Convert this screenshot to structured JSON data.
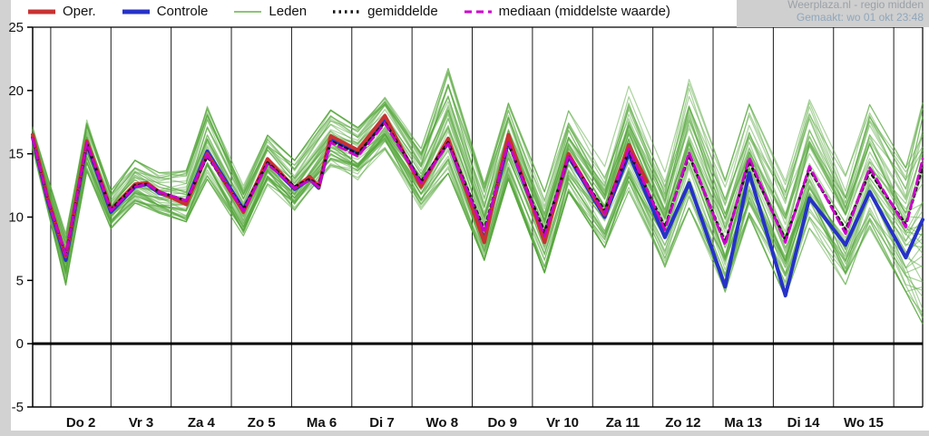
{
  "header": {
    "source": "Weerplaza.nl - regio midden",
    "generated": "Gemaakt: wo 01 okt 23:48"
  },
  "legend": {
    "items": [
      {
        "label": "Oper.",
        "color": "#c83232",
        "style": "solid",
        "sample_width": 5
      },
      {
        "label": "Controle",
        "color": "#2632c8",
        "style": "solid",
        "sample_width": 5
      },
      {
        "label": "Leden",
        "color": "#6ab04c",
        "style": "solid",
        "sample_width": 1.5
      },
      {
        "label": "gemiddelde",
        "color": "#141414",
        "style": "dotted",
        "sample_width": 3.5
      },
      {
        "label": "mediaan (middelste waarde)",
        "color": "#cc00cc",
        "style": "dashed",
        "sample_width": 3
      }
    ]
  },
  "chart_data": {
    "type": "line",
    "title": "",
    "xlabel": "",
    "ylabel": "",
    "x_domain": [
      1.7,
      16.48
    ],
    "ylim": [
      -5,
      25
    ],
    "yticks": [
      -5,
      0,
      5,
      10,
      15,
      20,
      25
    ],
    "grid": "vertical-day-lines",
    "zero_line": 0,
    "day_gridlines": [
      2,
      3,
      4,
      5,
      6,
      7,
      8,
      9,
      10,
      11,
      12,
      13,
      14,
      15,
      16
    ],
    "categories": [
      "Do 2",
      "Vr 3",
      "Za 4",
      "Zo 5",
      "Ma 6",
      "Di 7",
      "Wo 8",
      "Do 9",
      "Vr 10",
      "Za 11",
      "Zo 12",
      "Ma 13",
      "Di 14",
      "Wo 15"
    ],
    "colors": {
      "grid": "#1a1a1a",
      "axis": "#000000",
      "background": "#ffffff"
    },
    "series": [
      {
        "name": "Oper.",
        "color": "#c83232",
        "style": "solid",
        "width": 4,
        "points": [
          [
            1.7,
            16.5
          ],
          [
            1.95,
            11.5
          ],
          [
            2.25,
            6.9
          ],
          [
            2.6,
            16.0
          ],
          [
            3.0,
            10.6
          ],
          [
            3.4,
            12.6
          ],
          [
            3.6,
            12.7
          ],
          [
            3.8,
            12.0
          ],
          [
            4.25,
            11.0
          ],
          [
            4.6,
            15.0
          ],
          [
            5.2,
            10.4
          ],
          [
            5.6,
            14.6
          ],
          [
            6.05,
            12.3
          ],
          [
            6.3,
            13.2
          ],
          [
            6.45,
            12.4
          ],
          [
            6.65,
            16.4
          ],
          [
            7.1,
            15.3
          ],
          [
            7.55,
            18.0
          ],
          [
            8.15,
            12.4
          ],
          [
            8.6,
            16.2
          ],
          [
            9.2,
            8.0
          ],
          [
            9.6,
            16.5
          ],
          [
            10.2,
            8.0
          ],
          [
            10.6,
            15.0
          ],
          [
            11.2,
            10.2
          ],
          [
            11.6,
            15.7
          ],
          [
            11.9,
            12.8
          ]
        ]
      },
      {
        "name": "Controle",
        "color": "#2632c8",
        "style": "solid",
        "width": 4,
        "points": [
          [
            1.7,
            16.3
          ],
          [
            1.95,
            11.3
          ],
          [
            2.25,
            6.6
          ],
          [
            2.6,
            15.8
          ],
          [
            3.0,
            10.4
          ],
          [
            3.4,
            12.4
          ],
          [
            3.6,
            12.6
          ],
          [
            3.8,
            11.9
          ],
          [
            4.25,
            11.2
          ],
          [
            4.6,
            15.2
          ],
          [
            5.2,
            10.6
          ],
          [
            5.6,
            14.4
          ],
          [
            6.05,
            12.2
          ],
          [
            6.3,
            13.0
          ],
          [
            6.45,
            12.3
          ],
          [
            6.65,
            16.2
          ],
          [
            7.1,
            15.1
          ],
          [
            7.55,
            17.8
          ],
          [
            8.15,
            12.6
          ],
          [
            8.6,
            16.0
          ],
          [
            9.2,
            8.2
          ],
          [
            9.6,
            16.0
          ],
          [
            10.2,
            8.3
          ],
          [
            10.6,
            14.8
          ],
          [
            11.2,
            10.0
          ],
          [
            11.6,
            15.0
          ],
          [
            12.2,
            8.4
          ],
          [
            12.6,
            12.7
          ],
          [
            13.2,
            4.5
          ],
          [
            13.6,
            13.5
          ],
          [
            14.2,
            3.8
          ],
          [
            14.6,
            11.5
          ],
          [
            15.2,
            7.8
          ],
          [
            15.6,
            12.0
          ],
          [
            16.2,
            6.8
          ],
          [
            16.48,
            9.8
          ]
        ]
      },
      {
        "name": "gemiddelde",
        "color": "#141414",
        "style": "dotted",
        "width": 3,
        "points": [
          [
            1.7,
            16.2
          ],
          [
            1.95,
            11.4
          ],
          [
            2.25,
            7.0
          ],
          [
            2.6,
            15.8
          ],
          [
            3.0,
            10.6
          ],
          [
            3.4,
            12.5
          ],
          [
            3.6,
            12.6
          ],
          [
            3.8,
            12.0
          ],
          [
            4.25,
            11.3
          ],
          [
            4.6,
            14.8
          ],
          [
            5.2,
            10.6
          ],
          [
            5.6,
            14.3
          ],
          [
            6.05,
            12.4
          ],
          [
            6.3,
            13.0
          ],
          [
            6.45,
            12.5
          ],
          [
            6.65,
            16.0
          ],
          [
            7.1,
            15.0
          ],
          [
            7.55,
            17.5
          ],
          [
            8.15,
            12.8
          ],
          [
            8.6,
            15.9
          ],
          [
            9.2,
            9.0
          ],
          [
            9.6,
            15.8
          ],
          [
            10.2,
            8.8
          ],
          [
            10.6,
            14.8
          ],
          [
            11.2,
            10.5
          ],
          [
            11.6,
            15.2
          ],
          [
            12.2,
            9.2
          ],
          [
            12.6,
            14.9
          ],
          [
            13.2,
            8.0
          ],
          [
            13.6,
            14.4
          ],
          [
            14.2,
            8.2
          ],
          [
            14.6,
            13.8
          ],
          [
            15.2,
            9.0
          ],
          [
            15.6,
            13.6
          ],
          [
            16.2,
            9.4
          ],
          [
            16.48,
            14.0
          ]
        ]
      },
      {
        "name": "mediaan (middelste waarde)",
        "color": "#cc00cc",
        "style": "dashed",
        "width": 2.8,
        "points": [
          [
            1.7,
            16.2
          ],
          [
            1.95,
            11.4
          ],
          [
            2.25,
            7.0
          ],
          [
            2.6,
            15.9
          ],
          [
            3.0,
            10.5
          ],
          [
            3.4,
            12.4
          ],
          [
            3.6,
            12.6
          ],
          [
            3.8,
            12.0
          ],
          [
            4.25,
            11.3
          ],
          [
            4.6,
            14.9
          ],
          [
            5.2,
            10.5
          ],
          [
            5.6,
            14.2
          ],
          [
            6.05,
            12.3
          ],
          [
            6.3,
            12.9
          ],
          [
            6.45,
            12.4
          ],
          [
            6.65,
            15.9
          ],
          [
            7.1,
            14.8
          ],
          [
            7.55,
            17.4
          ],
          [
            8.15,
            12.7
          ],
          [
            8.6,
            15.8
          ],
          [
            9.2,
            8.8
          ],
          [
            9.6,
            15.9
          ],
          [
            10.2,
            8.5
          ],
          [
            10.6,
            14.9
          ],
          [
            11.2,
            10.3
          ],
          [
            11.6,
            15.4
          ],
          [
            12.2,
            9.0
          ],
          [
            12.6,
            15.1
          ],
          [
            13.2,
            7.8
          ],
          [
            13.6,
            14.7
          ],
          [
            14.2,
            8.0
          ],
          [
            14.6,
            14.0
          ],
          [
            15.2,
            8.7
          ],
          [
            15.6,
            13.9
          ],
          [
            16.2,
            9.2
          ],
          [
            16.48,
            14.6
          ]
        ]
      }
    ],
    "ensemble": {
      "name": "Leden",
      "color": "#55a83c",
      "count": 50,
      "opacity": 0.5,
      "line_width": 1.2,
      "envelope": [
        [
          1.7,
          15.3,
          17.2
        ],
        [
          2.25,
          4.5,
          8.8
        ],
        [
          2.6,
          13.5,
          17.8
        ],
        [
          3.0,
          9.0,
          12.2
        ],
        [
          3.4,
          11.0,
          14.6
        ],
        [
          3.8,
          10.2,
          13.6
        ],
        [
          4.25,
          9.5,
          13.8
        ],
        [
          4.6,
          12.8,
          19.2
        ],
        [
          5.2,
          8.4,
          12.6
        ],
        [
          5.6,
          12.4,
          16.6
        ],
        [
          6.05,
          10.4,
          14.6
        ],
        [
          6.65,
          13.8,
          18.6
        ],
        [
          7.1,
          12.8,
          17.2
        ],
        [
          7.55,
          15.2,
          19.6
        ],
        [
          8.15,
          10.4,
          15.8
        ],
        [
          8.6,
          13.2,
          22.0
        ],
        [
          9.2,
          6.4,
          12.8
        ],
        [
          9.6,
          12.8,
          19.2
        ],
        [
          10.2,
          5.4,
          12.2
        ],
        [
          10.6,
          11.8,
          18.6
        ],
        [
          11.2,
          7.4,
          14.2
        ],
        [
          11.6,
          11.8,
          20.6
        ],
        [
          12.2,
          5.8,
          13.8
        ],
        [
          12.6,
          10.4,
          21.2
        ],
        [
          13.2,
          3.8,
          13.2
        ],
        [
          13.6,
          9.8,
          19.2
        ],
        [
          14.2,
          3.4,
          13.2
        ],
        [
          14.6,
          8.8,
          19.6
        ],
        [
          15.2,
          4.4,
          13.6
        ],
        [
          15.6,
          8.8,
          19.2
        ],
        [
          16.2,
          3.8,
          14.2
        ],
        [
          16.48,
          1.0,
          19.6
        ]
      ]
    }
  }
}
